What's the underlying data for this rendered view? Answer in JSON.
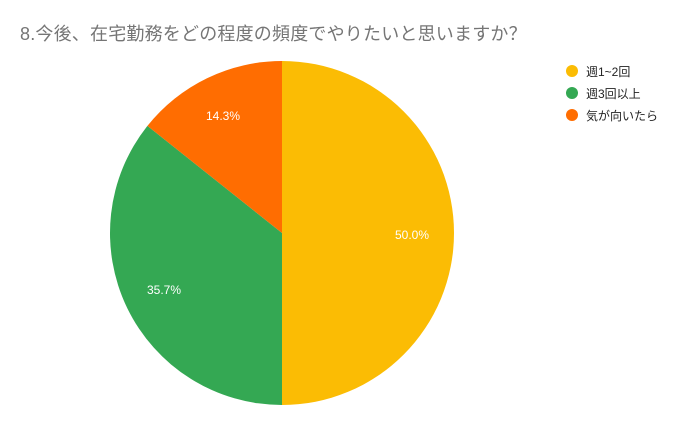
{
  "title": "8.今後、在宅勤務をどの程度の頻度でやりたいと思いますか？",
  "legend": [
    {
      "label": "週1~2回",
      "color": "#fbbc04"
    },
    {
      "label": "週3回以上",
      "color": "#34a853"
    },
    {
      "label": "気が向いたら",
      "color": "#ff6d01"
    }
  ],
  "slice_labels": [
    "50.0%",
    "35.7%",
    "14.3%"
  ],
  "chart_data": {
    "type": "pie",
    "title": "8.今後、在宅勤務をどの程度の頻度でやりたいと思いますか？",
    "categories": [
      "週1~2回",
      "週3回以上",
      "気が向いたら"
    ],
    "values": [
      50.0,
      35.7,
      14.3
    ],
    "colors": [
      "#fbbc04",
      "#34a853",
      "#ff6d01"
    ],
    "legend_position": "right",
    "start_angle": "12 o'clock, clockwise"
  }
}
